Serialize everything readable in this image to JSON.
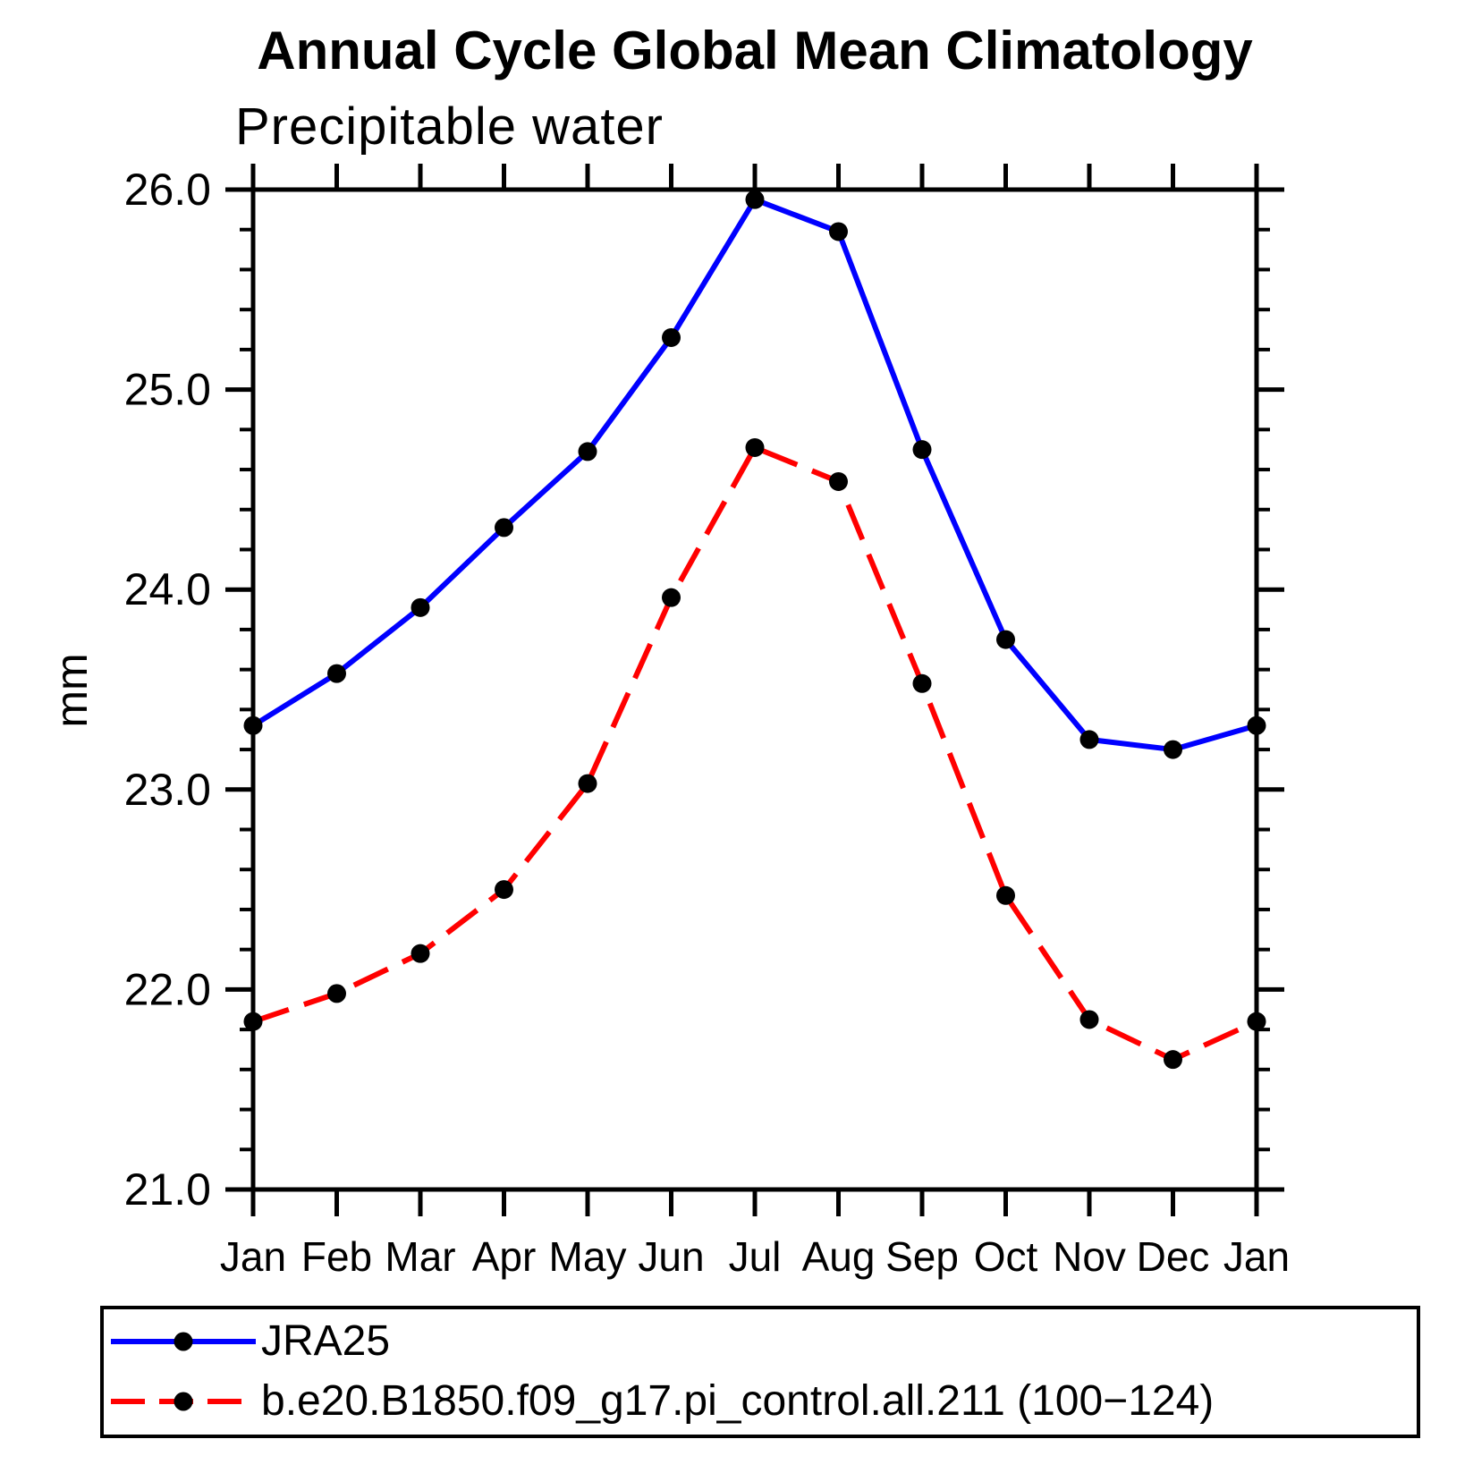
{
  "page": {
    "title": "Annual Cycle Global Mean Climatology",
    "subtitle": "Precipitable water",
    "ylabel": "mm"
  },
  "colors": {
    "series1": "#0000ff",
    "series2": "#ff0000",
    "marker": "#000000",
    "axis": "#000000",
    "background": "#ffffff"
  },
  "chart_data": {
    "type": "line",
    "title": "Annual Cycle Global Mean Climatology",
    "subtitle": "Precipitable water",
    "xlabel": "",
    "ylabel": "mm",
    "ylim": [
      21.0,
      26.0
    ],
    "ytick_interval": 1.0,
    "yminor_interval": 0.2,
    "yticks": [
      "26.0",
      "25.0",
      "24.0",
      "23.0",
      "22.0",
      "21.0"
    ],
    "categories": [
      "Jan",
      "Feb",
      "Mar",
      "Apr",
      "May",
      "Jun",
      "Jul",
      "Aug",
      "Sep",
      "Oct",
      "Nov",
      "Dec",
      "Jan"
    ],
    "grid": false,
    "legend_position": "bottom",
    "series": [
      {
        "name": "JRA25",
        "color": "#0000ff",
        "style": "solid",
        "marker": "circle",
        "values": [
          23.32,
          23.58,
          23.91,
          24.31,
          24.69,
          25.26,
          25.95,
          25.79,
          24.7,
          23.75,
          23.25,
          23.2,
          23.32
        ]
      },
      {
        "name": "b.e20.B1850.f09_g17.pi_control.all.211 (100−124)",
        "color": "#ff0000",
        "style": "dashed",
        "marker": "circle",
        "values": [
          21.84,
          21.98,
          22.18,
          22.5,
          23.03,
          23.96,
          24.71,
          24.54,
          23.53,
          22.47,
          21.85,
          21.65,
          21.84
        ]
      }
    ]
  }
}
